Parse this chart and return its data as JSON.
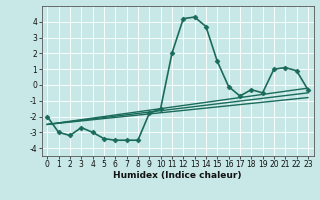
{
  "xlabel": "Humidex (Indice chaleur)",
  "bg_color": "#c8e8e8",
  "grid_color": "#ffffff",
  "line_color": "#1a6b5a",
  "xlim": [
    -0.5,
    23.5
  ],
  "ylim": [
    -4.5,
    5.0
  ],
  "yticks": [
    -4,
    -3,
    -2,
    -1,
    0,
    1,
    2,
    3,
    4
  ],
  "xticks": [
    0,
    1,
    2,
    3,
    4,
    5,
    6,
    7,
    8,
    9,
    10,
    11,
    12,
    13,
    14,
    15,
    16,
    17,
    18,
    19,
    20,
    21,
    22,
    23
  ],
  "main_series": {
    "x": [
      0,
      1,
      2,
      3,
      4,
      5,
      6,
      7,
      8,
      9,
      10,
      11,
      12,
      13,
      14,
      15,
      16,
      17,
      18,
      19,
      20,
      21,
      22,
      23
    ],
    "y": [
      -2.0,
      -3.0,
      -3.2,
      -2.7,
      -3.0,
      -3.4,
      -3.5,
      -3.5,
      -3.5,
      -1.8,
      -1.5,
      2.0,
      4.2,
      4.3,
      3.7,
      1.5,
      -0.1,
      -0.7,
      -0.3,
      -0.5,
      1.0,
      1.1,
      0.9,
      -0.3
    ]
  },
  "linear_series": [
    {
      "x0": 0,
      "y0": -2.5,
      "x1": 23,
      "y1": -0.2
    },
    {
      "x0": 0,
      "y0": -2.5,
      "x1": 23,
      "y1": -0.5
    },
    {
      "x0": 0,
      "y0": -2.5,
      "x1": 23,
      "y1": -0.8
    }
  ],
  "marker": "D",
  "markersize": 2.5,
  "linewidth": 1.2,
  "linear_linewidth": 1.0,
  "tick_fontsize": 5.5,
  "xlabel_fontsize": 6.5
}
